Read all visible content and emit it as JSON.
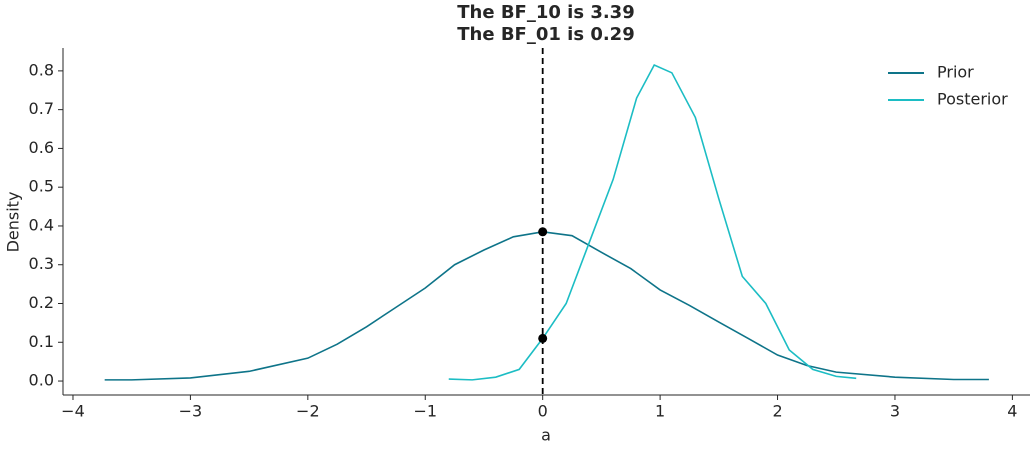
{
  "chart_data": {
    "type": "line",
    "title": [
      "The BF_10 is 3.39",
      "The BF_01 is 0.29"
    ],
    "x_label": "a",
    "y_label": "Density",
    "xlim": [
      -4.085,
      4.15
    ],
    "ylim": [
      -0.036,
      0.859
    ],
    "xticks": [
      {
        "value": -4,
        "label": "−4"
      },
      {
        "value": -3,
        "label": "−3"
      },
      {
        "value": -2,
        "label": "−2"
      },
      {
        "value": -1,
        "label": "−1"
      },
      0,
      1,
      2,
      3,
      4
    ],
    "yticks": [
      {
        "value": 0,
        "label": "0.0"
      },
      0.1,
      0.2,
      0.3,
      0.4,
      0.5,
      0.6,
      0.7,
      0.8
    ],
    "legend": "upper right",
    "series": [
      {
        "name": "Prior",
        "color": "#0e7489",
        "x": [
          -3.73,
          -3.5,
          -3,
          -2.5,
          -2,
          -1.75,
          -1.5,
          -1.25,
          -1,
          -0.75,
          -0.5,
          -0.25,
          0,
          0.25,
          0.5,
          0.75,
          1,
          1.25,
          1.5,
          1.75,
          2,
          2.25,
          2.5,
          3,
          3.5,
          3.8
        ],
        "values": [
          0.003,
          0.003,
          0.008,
          0.025,
          0.059,
          0.095,
          0.14,
          0.19,
          0.24,
          0.3,
          0.338,
          0.372,
          0.385,
          0.375,
          0.332,
          0.29,
          0.235,
          0.195,
          0.152,
          0.11,
          0.067,
          0.04,
          0.023,
          0.01,
          0.004,
          0.004
        ]
      },
      {
        "name": "Posterior",
        "color": "#1cbdc4",
        "x": [
          -0.8,
          -0.6,
          -0.4,
          -0.2,
          0,
          0.2,
          0.4,
          0.6,
          0.8,
          0.95,
          1.1,
          1.3,
          1.5,
          1.7,
          1.9,
          2.1,
          2.3,
          2.5,
          2.67
        ],
        "values": [
          0.005,
          0.003,
          0.01,
          0.03,
          0.11,
          0.2,
          0.36,
          0.52,
          0.73,
          0.815,
          0.795,
          0.68,
          0.47,
          0.27,
          0.2,
          0.08,
          0.03,
          0.012,
          0.007
        ]
      }
    ],
    "reference_x": 0,
    "markers": {
      "x": [
        0,
        0
      ],
      "values": [
        0.385,
        0.11
      ],
      "color": "#000000"
    }
  }
}
